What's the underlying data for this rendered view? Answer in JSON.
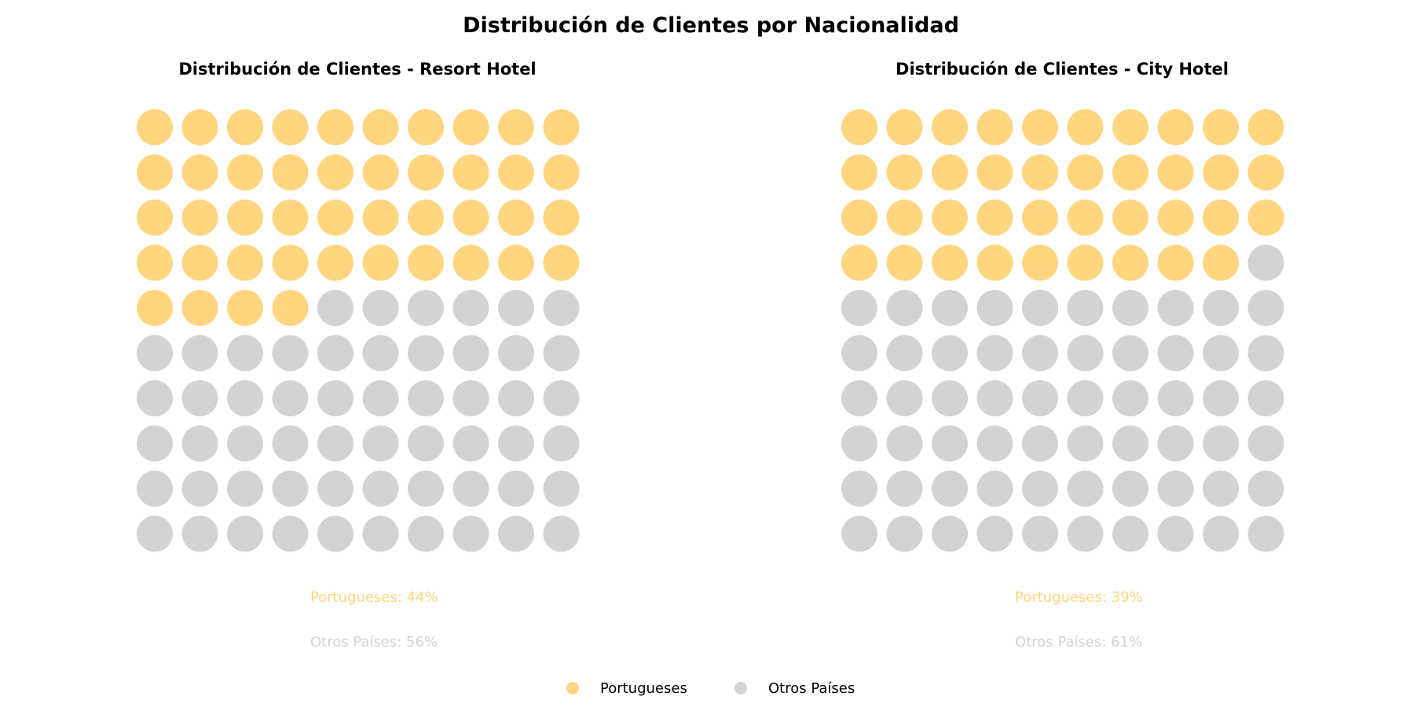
{
  "title": "Distribución de Clientes por Nacionalidad",
  "colors": {
    "portugueses": "#FFD580",
    "otros": "#D3D3D3"
  },
  "legend": {
    "items": [
      {
        "label": "Portugueses",
        "color": "#FFD580"
      },
      {
        "label": "Otros Países",
        "color": "#D3D3D3"
      }
    ]
  },
  "chart_data": [
    {
      "type": "waffle",
      "title": "Distribución de Clientes - Resort Hotel",
      "grid": [
        10,
        10
      ],
      "series": [
        {
          "name": "Portugueses",
          "value": 44,
          "color": "#FFD580"
        },
        {
          "name": "Otros Países",
          "value": 56,
          "color": "#D3D3D3"
        }
      ],
      "labels": [
        "Portugueses: 44%",
        "Otros Países: 56%"
      ]
    },
    {
      "type": "waffle",
      "title": "Distribución de Clientes - City Hotel",
      "grid": [
        10,
        10
      ],
      "series": [
        {
          "name": "Portugueses",
          "value": 39,
          "color": "#FFD580"
        },
        {
          "name": "Otros Países",
          "value": 61,
          "color": "#D3D3D3"
        }
      ],
      "labels": [
        "Portugueses: 39%",
        "Otros Países: 61%"
      ]
    }
  ]
}
